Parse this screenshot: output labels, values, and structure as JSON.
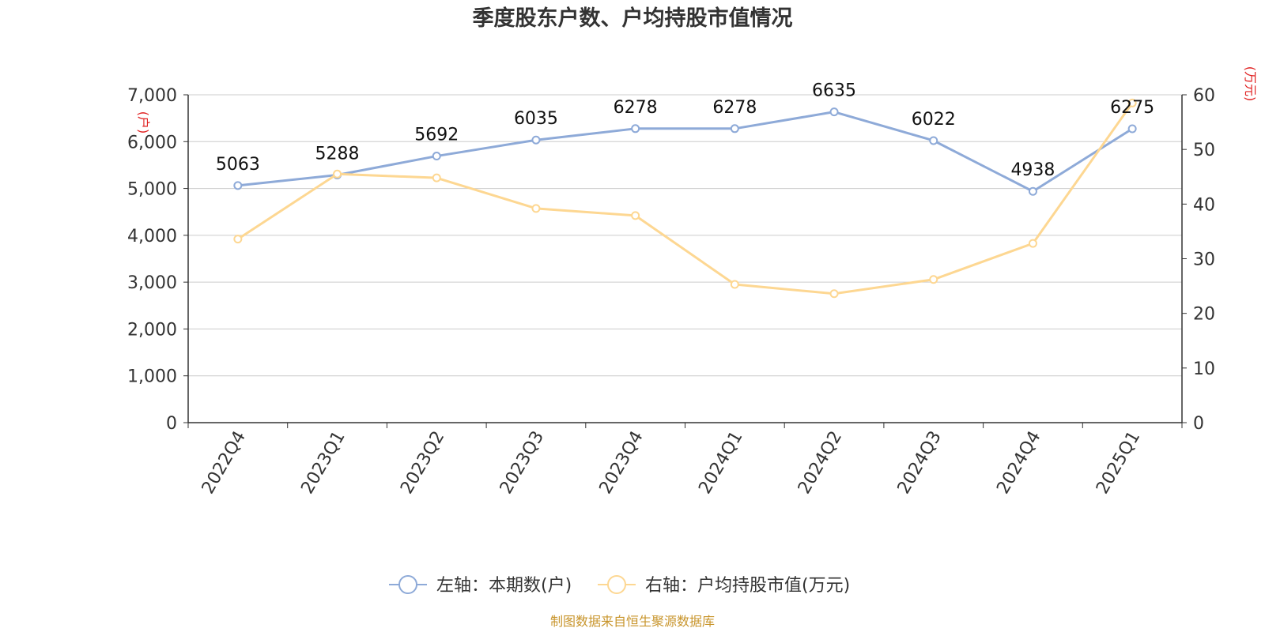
{
  "chart_data": {
    "type": "line",
    "title": "季度股东户数、户均持股市值情况",
    "categories": [
      "2022Q4",
      "2023Q1",
      "2023Q2",
      "2023Q3",
      "2023Q4",
      "2024Q1",
      "2024Q2",
      "2024Q3",
      "2024Q4",
      "2025Q1"
    ],
    "series": [
      {
        "name": "左轴：本期数(户)",
        "axis": "left",
        "color": "#8eaad8",
        "values": [
          5063,
          5288,
          5692,
          6035,
          6278,
          6278,
          6635,
          6022,
          4938,
          6275
        ],
        "data_labels": [
          "5063",
          "5288",
          "5692",
          "6035",
          "6278",
          "6278",
          "6635",
          "6022",
          "4938",
          "6275"
        ]
      },
      {
        "name": "右轴：户均持股市值(万元)",
        "axis": "right",
        "color": "#fdd792",
        "values": [
          33.6,
          45.5,
          44.8,
          39.2,
          37.9,
          25.3,
          23.6,
          26.2,
          32.8,
          58.5
        ]
      }
    ],
    "left_axis": {
      "unit": "(户)",
      "ylim": [
        0,
        7000
      ],
      "ticks": [
        0,
        1000,
        2000,
        3000,
        4000,
        5000,
        6000,
        7000
      ],
      "tick_labels": [
        "0",
        "1,000",
        "2,000",
        "3,000",
        "4,000",
        "5,000",
        "6,000",
        "7,000"
      ]
    },
    "right_axis": {
      "unit": "(万元)",
      "ylim": [
        0,
        60
      ],
      "ticks": [
        0,
        10,
        20,
        30,
        40,
        50,
        60
      ],
      "tick_labels": [
        "0",
        "10",
        "20",
        "30",
        "40",
        "50",
        "60"
      ]
    },
    "grid": true,
    "legend_position": "bottom-center",
    "unit_color": "#e02020",
    "source_color": "#c8952c"
  },
  "source": "制图数据来自恒生聚源数据库"
}
